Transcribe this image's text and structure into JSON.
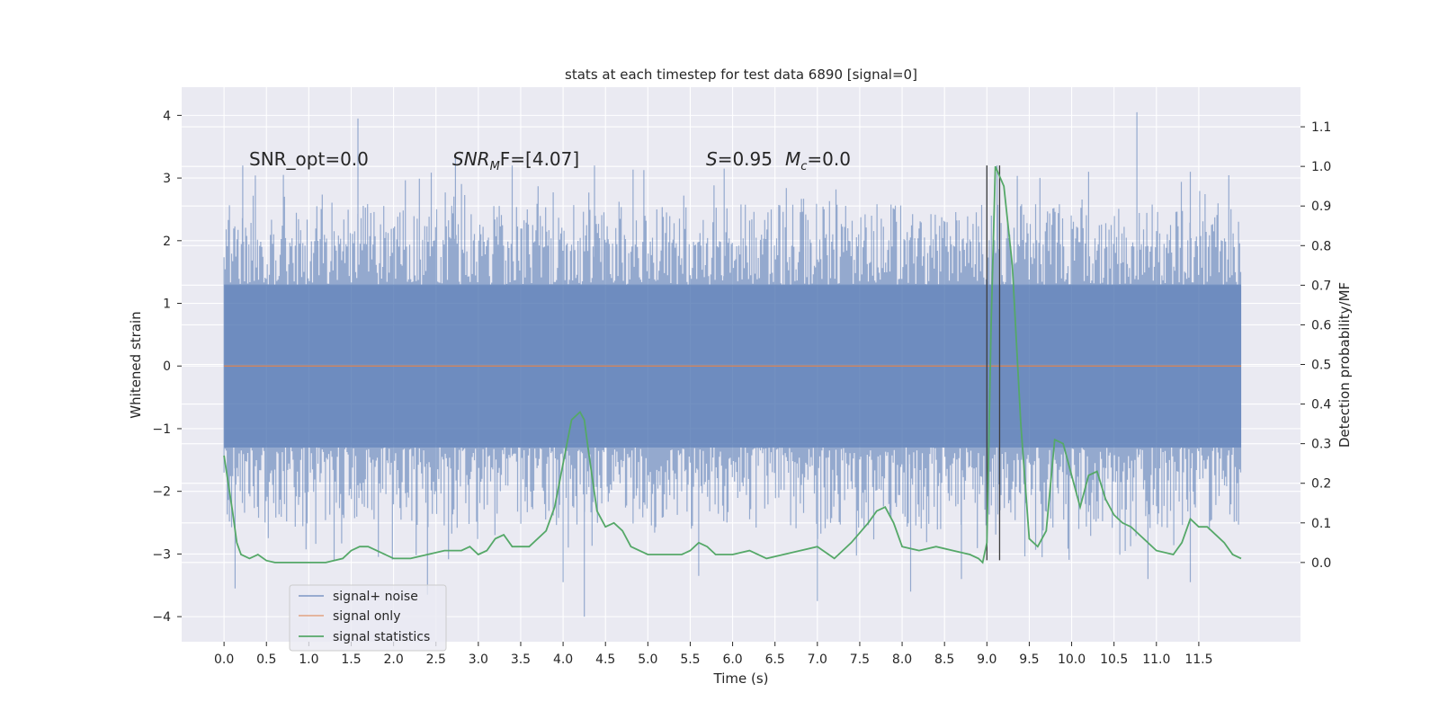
{
  "chart_data": {
    "type": "line",
    "title": "stats at each timestep for test data 6890 [signal=0]",
    "xlabel": "Time (s)",
    "ylabel_left": "Whitened strain",
    "ylabel_right": "Detection probability/MF",
    "xlim": [
      -0.5,
      12.7
    ],
    "ylim_left": [
      -4.4,
      4.45
    ],
    "ylim_right": [
      -0.2,
      1.2
    ],
    "x_ticks": [
      "0.0",
      "0.5",
      "1.0",
      "1.5",
      "2.0",
      "2.5",
      "3.0",
      "3.5",
      "4.0",
      "4.5",
      "5.0",
      "5.5",
      "6.0",
      "6.5",
      "7.0",
      "7.5",
      "8.0",
      "8.5",
      "9.0",
      "9.5",
      "10.0",
      "10.5",
      "11.0",
      "11.5"
    ],
    "y_ticks_left": [
      "4",
      "3",
      "2",
      "1",
      "0",
      "−1",
      "−2",
      "−3",
      "−4"
    ],
    "y_ticks_right": [
      "1.1",
      "1.0",
      "0.9",
      "0.8",
      "0.7",
      "0.6",
      "0.5",
      "0.4",
      "0.3",
      "0.2",
      "0.1",
      "0.0"
    ],
    "grid": true,
    "background": "#eaeaf2",
    "annotations": {
      "snr_opt": "SNR_opt=0.0",
      "snr_mf_main": "SNR",
      "snr_mf_sub": "M",
      "snr_mf_rest": "F=[4.07]",
      "s_label": "S",
      "s_value": "=0.95",
      "mc_label": "M",
      "mc_sub": "c",
      "mc_value": "=0.0"
    },
    "legend": {
      "placement": "lower-left",
      "entries": [
        {
          "label": "signal+ noise",
          "color": "#4c72b0"
        },
        {
          "label": "signal only",
          "color": "#dd8452"
        },
        {
          "label": "signal statistics",
          "color": "#55a868"
        }
      ]
    },
    "series": [
      {
        "name": "signal+ noise",
        "axis": "left",
        "color": "#4c72b0",
        "t_range": [
          0.0,
          12.0
        ],
        "envelope": {
          "core_abs": 1.3,
          "typical_max": 2.6,
          "typical_min": -2.6,
          "peak_max": 4.1,
          "peak_min": -4.0
        },
        "peaks": [
          {
            "t": 1.58,
            "v": 3.95
          },
          {
            "t": 10.77,
            "v": 4.05
          },
          {
            "t": 9.0,
            "v": 3.2
          },
          {
            "t": 9.12,
            "v": 3.2
          },
          {
            "t": 0.22,
            "v": 3.2
          },
          {
            "t": 0.7,
            "v": 3.05
          },
          {
            "t": 2.73,
            "v": 3.35
          },
          {
            "t": 3.4,
            "v": 3.2
          },
          {
            "t": 4.37,
            "v": 3.2
          },
          {
            "t": 5.9,
            "v": 3.15
          },
          {
            "t": 11.4,
            "v": 3.1
          },
          {
            "t": 10.2,
            "v": 3.1
          },
          {
            "t": 4.25,
            "v": -4.0
          },
          {
            "t": 0.13,
            "v": -3.55
          },
          {
            "t": 7.0,
            "v": -3.75
          },
          {
            "t": 2.4,
            "v": -3.65
          },
          {
            "t": 8.1,
            "v": -3.6
          },
          {
            "t": 4.0,
            "v": -3.45
          },
          {
            "t": 10.9,
            "v": -3.4
          },
          {
            "t": 11.4,
            "v": -3.45
          },
          {
            "t": 5.6,
            "v": -3.35
          },
          {
            "t": 8.7,
            "v": -3.4
          }
        ]
      },
      {
        "name": "signal only",
        "axis": "left",
        "color": "#dd8452",
        "x": [
          0.0,
          12.0
        ],
        "y": [
          0.0,
          0.0
        ]
      },
      {
        "name": "signal statistics",
        "axis": "right",
        "color": "#55a868",
        "x": [
          0.0,
          0.1,
          0.15,
          0.2,
          0.3,
          0.4,
          0.5,
          0.6,
          0.8,
          1.0,
          1.2,
          1.4,
          1.5,
          1.6,
          1.7,
          1.8,
          2.0,
          2.2,
          2.4,
          2.6,
          2.8,
          2.9,
          3.0,
          3.1,
          3.2,
          3.3,
          3.4,
          3.5,
          3.6,
          3.8,
          3.9,
          4.0,
          4.1,
          4.2,
          4.25,
          4.3,
          4.4,
          4.5,
          4.6,
          4.7,
          4.8,
          5.0,
          5.2,
          5.4,
          5.5,
          5.6,
          5.7,
          5.8,
          6.0,
          6.2,
          6.4,
          6.6,
          6.8,
          7.0,
          7.2,
          7.4,
          7.6,
          7.7,
          7.8,
          7.9,
          8.0,
          8.2,
          8.4,
          8.6,
          8.8,
          8.9,
          8.95,
          9.0,
          9.05,
          9.1,
          9.2,
          9.3,
          9.4,
          9.5,
          9.6,
          9.7,
          9.8,
          9.9,
          10.0,
          10.1,
          10.2,
          10.3,
          10.4,
          10.5,
          10.6,
          10.7,
          10.8,
          11.0,
          11.2,
          11.3,
          11.4,
          11.5,
          11.6,
          11.8,
          11.9,
          12.0
        ],
        "y": [
          0.27,
          0.13,
          0.05,
          0.02,
          0.01,
          0.02,
          0.005,
          0.0,
          0.0,
          0.0,
          0.0,
          0.01,
          0.03,
          0.04,
          0.04,
          0.03,
          0.01,
          0.01,
          0.02,
          0.03,
          0.03,
          0.04,
          0.02,
          0.03,
          0.06,
          0.07,
          0.04,
          0.04,
          0.04,
          0.08,
          0.14,
          0.25,
          0.36,
          0.38,
          0.36,
          0.28,
          0.13,
          0.09,
          0.1,
          0.08,
          0.04,
          0.02,
          0.02,
          0.02,
          0.03,
          0.05,
          0.04,
          0.02,
          0.02,
          0.03,
          0.01,
          0.02,
          0.03,
          0.04,
          0.01,
          0.05,
          0.1,
          0.13,
          0.14,
          0.1,
          0.04,
          0.03,
          0.04,
          0.03,
          0.02,
          0.01,
          0.0,
          0.05,
          0.6,
          1.0,
          0.95,
          0.75,
          0.35,
          0.06,
          0.04,
          0.08,
          0.31,
          0.3,
          0.22,
          0.14,
          0.22,
          0.23,
          0.16,
          0.12,
          0.1,
          0.09,
          0.07,
          0.03,
          0.02,
          0.05,
          0.11,
          0.09,
          0.09,
          0.05,
          0.02,
          0.01
        ]
      }
    ],
    "vertical_markers": {
      "color": "#3d3d3d",
      "x": [
        9.0,
        9.15
      ],
      "range_left": [
        -3.1,
        3.2
      ]
    }
  }
}
